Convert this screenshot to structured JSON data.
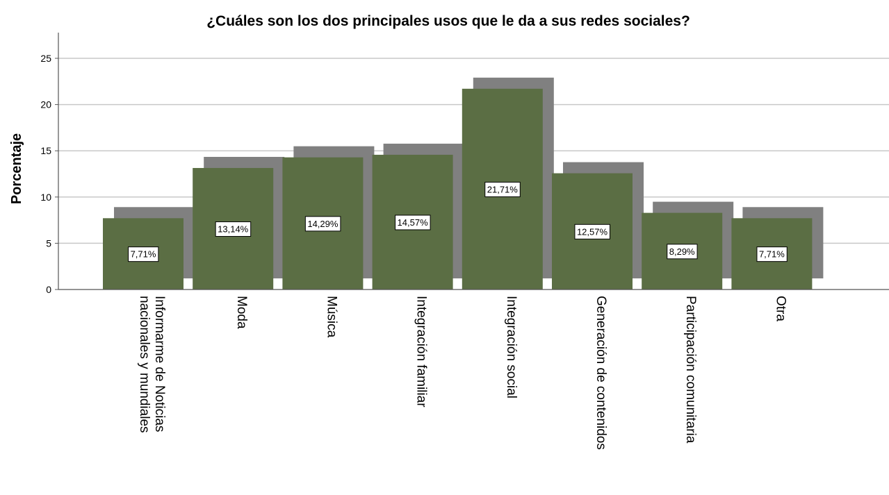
{
  "chart_data": {
    "type": "bar",
    "title": "¿Cuáles son los dos principales usos que le da a sus redes sociales?",
    "ylabel": "Porcentaje",
    "xlabel": "",
    "ylim": [
      0,
      25
    ],
    "yticks": [
      0,
      5,
      10,
      15,
      20,
      25
    ],
    "grid": true,
    "style": "3d-shadow",
    "colors": {
      "bar": "#5b6e44",
      "shadow": "#808080",
      "grid": "#c8c8c8",
      "axis": "#555555"
    },
    "categories": [
      [
        "Informarme de Noticias",
        "nacionales y mundiales"
      ],
      [
        "Moda"
      ],
      [
        "Música"
      ],
      [
        "Integración familiar"
      ],
      [
        "Integración social"
      ],
      [
        "Generación de contenidos"
      ],
      [
        "Participación comunitaria"
      ],
      [
        "Otra"
      ]
    ],
    "values": [
      7.71,
      13.14,
      14.29,
      14.57,
      21.71,
      12.57,
      8.29,
      7.71
    ],
    "data_labels": [
      "7,71%",
      "13,14%",
      "14,29%",
      "14,57%",
      "21,71%",
      "12,57%",
      "8,29%",
      "7,71%"
    ]
  }
}
